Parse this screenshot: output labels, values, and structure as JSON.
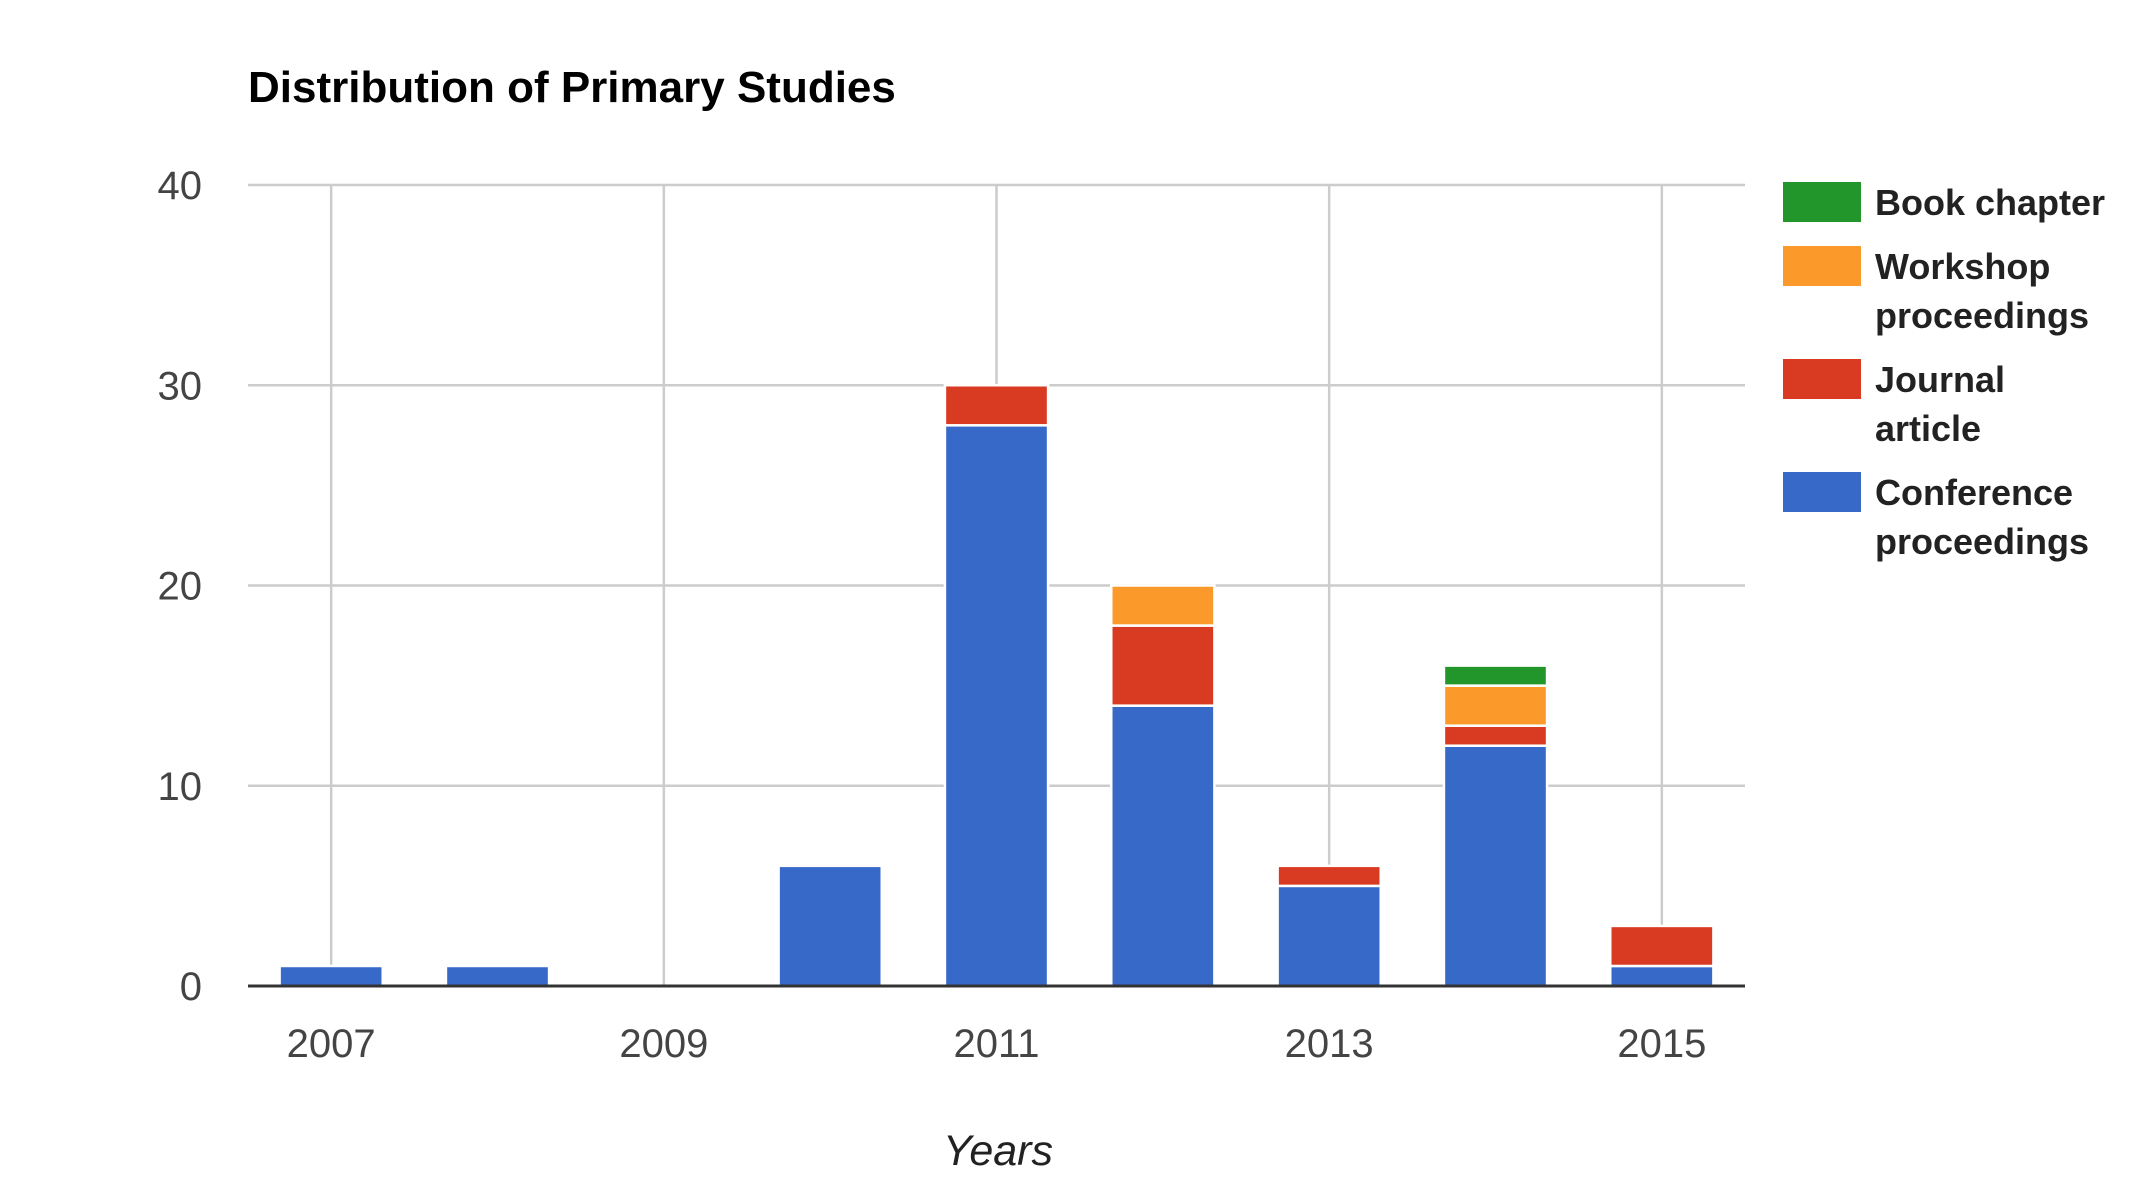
{
  "chart_data": {
    "type": "bar",
    "stacked": true,
    "title": "Distribution of Primary Studies",
    "xlabel": "Years",
    "ylabel": "",
    "x": [
      2007,
      2008,
      2009,
      2010,
      2011,
      2012,
      2013,
      2014,
      2015
    ],
    "x_tick_labels": [
      "2007",
      "2009",
      "2011",
      "2013",
      "2015"
    ],
    "y_tick_labels": [
      "0",
      "10",
      "20",
      "30",
      "40"
    ],
    "ylim": [
      0,
      40
    ],
    "grid": true,
    "legend_position": "right",
    "series": [
      {
        "name": "Conference proceedings",
        "color": "#3769c9",
        "values": [
          1,
          1,
          0,
          6,
          28,
          14,
          5,
          12,
          1
        ]
      },
      {
        "name": "Journal article",
        "color": "#d83a22",
        "values": [
          0,
          0,
          0,
          0,
          2,
          4,
          1,
          1,
          2
        ]
      },
      {
        "name": "Workshop proceedings",
        "color": "#fb9a2a",
        "values": [
          0,
          0,
          0,
          0,
          0,
          2,
          0,
          2,
          0
        ]
      },
      {
        "name": "Book chapter",
        "color": "#22962a",
        "values": [
          0,
          0,
          0,
          0,
          0,
          0,
          0,
          1,
          0
        ]
      }
    ],
    "legend": [
      {
        "lines": [
          "Book chapter"
        ],
        "series": 3
      },
      {
        "lines": [
          "Workshop",
          "proceedings"
        ],
        "series": 2
      },
      {
        "lines": [
          "Journal",
          "article"
        ],
        "series": 1
      },
      {
        "lines": [
          "Conference",
          "proceedings"
        ],
        "series": 0
      }
    ]
  }
}
